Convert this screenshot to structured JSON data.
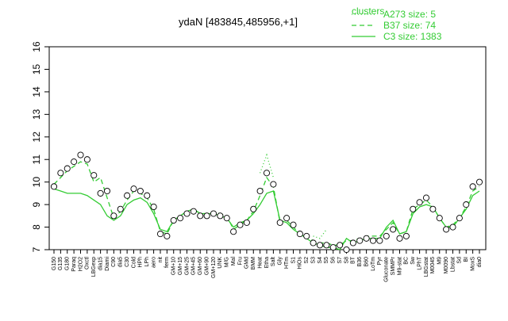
{
  "chart_data": {
    "type": "line",
    "title": "ydaN [483845,485956,+1]",
    "legend_title": "clusters",
    "categories": [
      "G150",
      "G135",
      "G180",
      "Paraq",
      "H2O2",
      "Oxctl",
      "LBGexp",
      "dia15",
      "Diami",
      "C90",
      "dia5",
      "C30",
      "Cold",
      "HPh",
      "LPh",
      "aero",
      "nit",
      "ferm",
      "GM+10",
      "GM+15",
      "GM+25",
      "GM+45",
      "GM+60",
      "GM+90",
      "GM+120",
      "UNK",
      "M/G",
      "Mal",
      "Fru",
      "GMd",
      "BMM",
      "Heat",
      "Etha",
      "Salt",
      "Gly",
      "HTm",
      "S1",
      "HiOs",
      "S2",
      "S3",
      "S4",
      "S5",
      "S6",
      "S7",
      "S8",
      "BT",
      "B36",
      "B60",
      "LoTm",
      "Pyr",
      "Gluconate",
      "SMMPr",
      "M9-stat",
      "BC",
      "Sw",
      "LPhT",
      "LBGstat",
      "M0045",
      "M9",
      "M0090",
      "Lbstat",
      "Sd",
      "BI",
      "MoxS",
      "dia0"
    ],
    "values": [
      9.8,
      10.4,
      10.6,
      10.9,
      11.2,
      11.0,
      10.3,
      9.5,
      9.6,
      8.5,
      8.8,
      9.4,
      9.7,
      9.6,
      9.4,
      8.9,
      7.7,
      7.6,
      8.3,
      8.4,
      8.6,
      8.7,
      8.5,
      8.5,
      8.6,
      8.5,
      8.4,
      7.8,
      8.1,
      8.2,
      8.8,
      9.6,
      10.4,
      9.9,
      8.2,
      8.4,
      8.1,
      7.7,
      7.6,
      7.3,
      7.2,
      7.2,
      7.1,
      7.2,
      7.0,
      7.3,
      7.4,
      7.5,
      7.4,
      7.4,
      7.6,
      7.9,
      7.5,
      7.6,
      8.8,
      9.1,
      9.3,
      8.8,
      8.4,
      7.9,
      8.0,
      8.4,
      9.0,
      9.8,
      10.0
    ],
    "series": [
      {
        "name": "A273 size: 5",
        "color": "#33cc33",
        "dash": "dotted",
        "values": [
          null,
          null,
          null,
          null,
          null,
          null,
          null,
          null,
          null,
          null,
          null,
          null,
          null,
          null,
          null,
          null,
          null,
          null,
          null,
          null,
          null,
          null,
          null,
          null,
          null,
          null,
          null,
          null,
          null,
          null,
          null,
          10.4,
          11.2,
          10.2,
          null,
          null,
          null,
          null,
          null,
          7.6,
          7.5,
          7.9,
          null,
          null,
          null,
          null,
          null,
          null,
          null,
          null,
          null,
          null,
          null,
          null,
          null,
          null,
          null,
          null,
          null,
          null,
          null,
          null,
          null,
          null,
          null
        ]
      },
      {
        "name": "B37 size: 74",
        "color": "#33cc33",
        "dash": "dashed",
        "values": [
          9.9,
          10.2,
          10.5,
          10.7,
          10.9,
          10.8,
          10.0,
          10.2,
          9.3,
          8.4,
          8.7,
          9.2,
          9.6,
          9.5,
          9.3,
          8.8,
          7.8,
          7.7,
          8.3,
          8.5,
          8.7,
          8.8,
          8.6,
          8.6,
          8.7,
          8.6,
          8.5,
          7.9,
          8.1,
          8.3,
          8.7,
          9.4,
          10.2,
          9.8,
          8.2,
          8.3,
          8.0,
          7.7,
          7.6,
          7.4,
          7.3,
          7.3,
          7.2,
          7.2,
          7.4,
          7.4,
          7.5,
          7.6,
          7.6,
          7.6,
          7.9,
          8.2,
          7.7,
          7.8,
          8.8,
          9.0,
          9.2,
          8.9,
          8.4,
          8.0,
          8.1,
          8.4,
          8.9,
          9.6,
          9.8
        ]
      },
      {
        "name": "C3 size: 1383",
        "color": "#33cc33",
        "dash": "solid",
        "values": [
          9.7,
          9.6,
          9.5,
          9.5,
          9.5,
          9.4,
          9.2,
          9.0,
          8.5,
          8.3,
          8.5,
          9.0,
          9.2,
          9.3,
          9.1,
          8.6,
          7.9,
          7.8,
          8.3,
          8.5,
          8.7,
          8.8,
          8.6,
          8.6,
          8.6,
          8.5,
          8.4,
          8.0,
          8.2,
          8.3,
          8.6,
          9.0,
          9.5,
          9.6,
          8.3,
          8.2,
          7.9,
          7.7,
          7.5,
          7.3,
          7.2,
          7.1,
          7.1,
          7.0,
          7.5,
          7.3,
          7.4,
          7.5,
          7.5,
          7.5,
          8.0,
          8.3,
          7.7,
          7.8,
          8.6,
          8.9,
          9.0,
          8.9,
          8.4,
          8.0,
          8.0,
          8.4,
          8.8,
          9.4,
          9.6
        ]
      }
    ],
    "ylim": [
      7,
      16
    ],
    "yticks": [
      7,
      8,
      9,
      10,
      11,
      12,
      13,
      14,
      15,
      16
    ]
  }
}
